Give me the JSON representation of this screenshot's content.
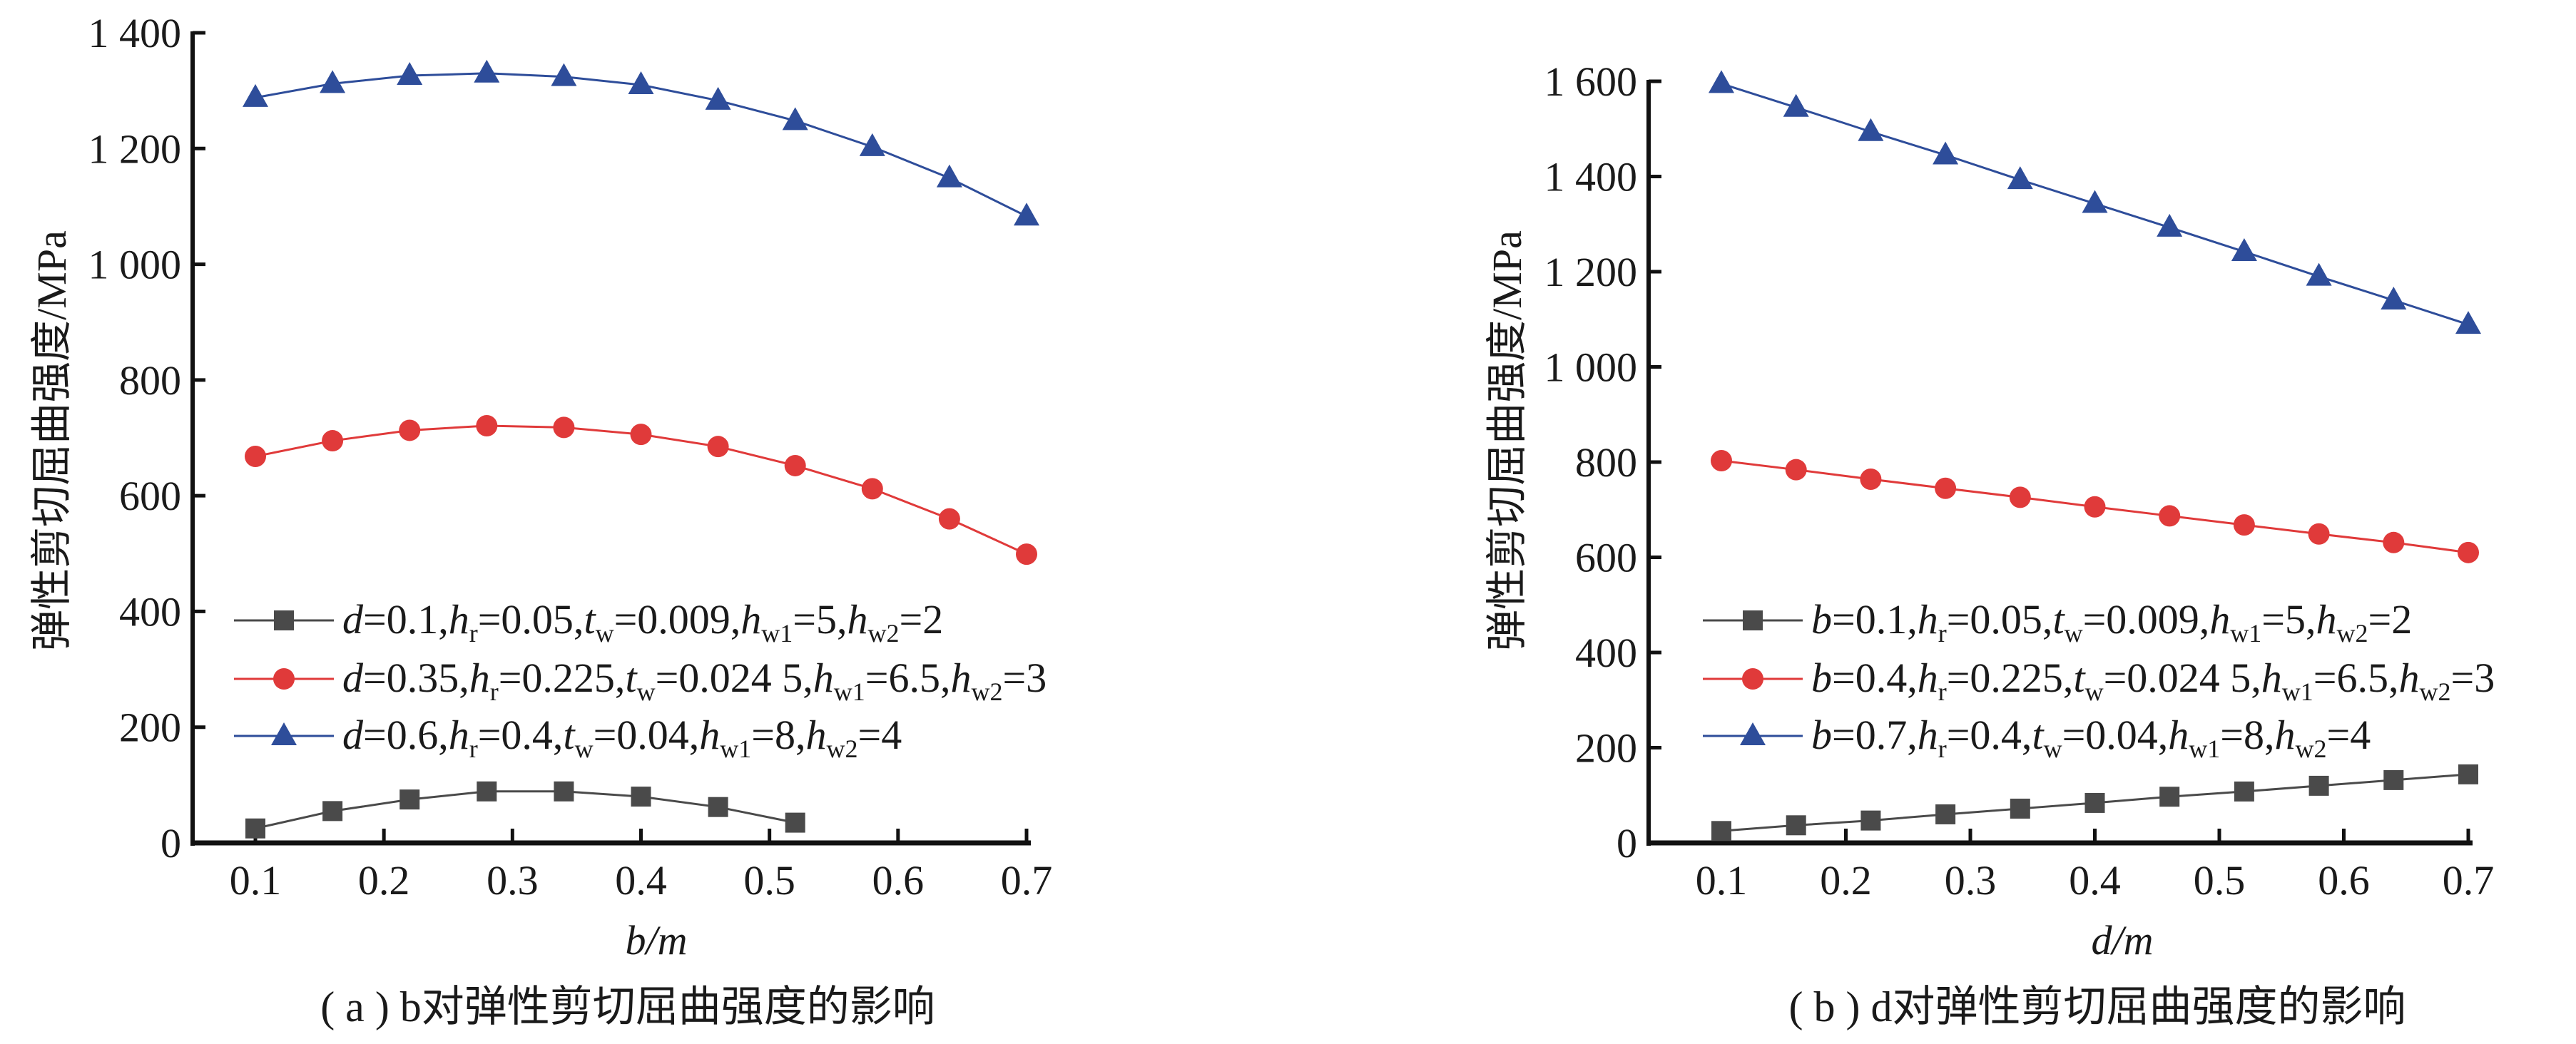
{
  "colors": {
    "gray": "#4a4a4a",
    "red": "#e03a3a",
    "blue": "#2e4d9a",
    "axis": "#111111"
  },
  "chart_data": [
    {
      "type": "line",
      "caption": "( a ) b对弹性剪切屈曲强度的影响",
      "xlabel": "b/m",
      "ylabel": "弹性剪切屈曲强度/MPa",
      "xlim": [
        0.1,
        0.7
      ],
      "ylim": [
        0,
        1400
      ],
      "xticks": [
        "0.1",
        "0.2",
        "0.3",
        "0.4",
        "0.5",
        "0.6",
        "0.7"
      ],
      "yticks": [
        {
          "v": 0,
          "label": "0"
        },
        {
          "v": 200,
          "label": "200"
        },
        {
          "v": 400,
          "label": "400"
        },
        {
          "v": 600,
          "label": "600"
        },
        {
          "v": 800,
          "label": "800"
        },
        {
          "v": 1000,
          "label": "1 000"
        },
        {
          "v": 1200,
          "label": "1 200"
        },
        {
          "v": 1400,
          "label": "1 400"
        }
      ],
      "legend_position": "lower-left",
      "series": [
        {
          "name": "d=0.1,hr=0.05,tw=0.009,hw1=5,hw2=2",
          "color": "gray",
          "marker": "square",
          "legend": [
            [
              "d",
              "i"
            ],
            [
              "=0.1,"
            ],
            [
              "h",
              "i"
            ],
            [
              "r",
              "s"
            ],
            [
              "=0.05,"
            ],
            [
              "t",
              "i"
            ],
            [
              "w",
              "s"
            ],
            [
              "=0.009,"
            ],
            [
              "h",
              "i"
            ],
            [
              "w1",
              "s"
            ],
            [
              "=5,"
            ],
            [
              "h",
              "i"
            ],
            [
              "w2",
              "s"
            ],
            [
              "=2"
            ]
          ],
          "x": [
            0.1,
            0.16,
            0.22,
            0.28,
            0.34,
            0.4,
            0.46,
            0.52
          ],
          "y": [
            25,
            55,
            75,
            89,
            89,
            80,
            62,
            35
          ]
        },
        {
          "name": "d=0.35,hr=0.225,tw=0.024 5,hw1=6.5,hw2=3",
          "color": "red",
          "marker": "circle",
          "legend": [
            [
              "d",
              "i"
            ],
            [
              "=0.35,"
            ],
            [
              "h",
              "i"
            ],
            [
              "r",
              "s"
            ],
            [
              "=0.225,"
            ],
            [
              "t",
              "i"
            ],
            [
              "w",
              "s"
            ],
            [
              "=0.024 5,"
            ],
            [
              "h",
              "i"
            ],
            [
              "w1",
              "s"
            ],
            [
              "=6.5,"
            ],
            [
              "h",
              "i"
            ],
            [
              "w2",
              "s"
            ],
            [
              "=3"
            ]
          ],
          "x": [
            0.1,
            0.16,
            0.22,
            0.28,
            0.34,
            0.4,
            0.46,
            0.52,
            0.58,
            0.64,
            0.7
          ],
          "y": [
            668,
            695,
            713,
            721,
            718,
            706,
            685,
            652,
            612,
            560,
            499
          ]
        },
        {
          "name": "d=0.6,hr=0.4,tw=0.04,hw1=8,hw2=4",
          "color": "blue",
          "marker": "triangle",
          "legend": [
            [
              "d",
              "i"
            ],
            [
              "=0.6,"
            ],
            [
              "h",
              "i"
            ],
            [
              "r",
              "s"
            ],
            [
              "=0.4,"
            ],
            [
              "t",
              "i"
            ],
            [
              "w",
              "s"
            ],
            [
              "=0.04,"
            ],
            [
              "h",
              "i"
            ],
            [
              "w1",
              "s"
            ],
            [
              "=8,"
            ],
            [
              "h",
              "i"
            ],
            [
              "w2",
              "s"
            ],
            [
              "=4"
            ]
          ],
          "x": [
            0.1,
            0.16,
            0.22,
            0.28,
            0.34,
            0.4,
            0.46,
            0.52,
            0.58,
            0.64,
            0.7
          ],
          "y": [
            1288,
            1312,
            1326,
            1330,
            1324,
            1310,
            1283,
            1248,
            1203,
            1149,
            1083
          ]
        }
      ]
    },
    {
      "type": "line",
      "caption": "( b ) d对弹性剪切屈曲强度的影响",
      "xlabel": "d/m",
      "ylabel": "弹性剪切屈曲强度/MPa",
      "xlim": [
        0.1,
        0.7
      ],
      "ylim": [
        0,
        1600
      ],
      "xticks": [
        "0.1",
        "0.2",
        "0.3",
        "0.4",
        "0.5",
        "0.6",
        "0.7"
      ],
      "yticks": [
        {
          "v": 0,
          "label": "0"
        },
        {
          "v": 200,
          "label": "200"
        },
        {
          "v": 400,
          "label": "400"
        },
        {
          "v": 600,
          "label": "600"
        },
        {
          "v": 800,
          "label": "800"
        },
        {
          "v": 1000,
          "label": "1 000"
        },
        {
          "v": 1200,
          "label": "1 200"
        },
        {
          "v": 1400,
          "label": "1 400"
        },
        {
          "v": 1600,
          "label": "1 600"
        }
      ],
      "legend_position": "lower-left",
      "series": [
        {
          "name": "b=0.1,hr=0.05,tw=0.009,hw1=5,hw2=2",
          "color": "gray",
          "marker": "square",
          "legend": [
            [
              "b",
              "i"
            ],
            [
              "=0.1,"
            ],
            [
              "h",
              "i"
            ],
            [
              "r",
              "s"
            ],
            [
              "=0.05,"
            ],
            [
              "t",
              "i"
            ],
            [
              "w",
              "s"
            ],
            [
              "=0.009,"
            ],
            [
              "h",
              "i"
            ],
            [
              "w1",
              "s"
            ],
            [
              "=5,"
            ],
            [
              "h",
              "i"
            ],
            [
              "w2",
              "s"
            ],
            [
              "=2"
            ]
          ],
          "x": [
            0.1,
            0.16,
            0.22,
            0.28,
            0.34,
            0.4,
            0.46,
            0.52,
            0.58,
            0.64,
            0.7
          ],
          "y": [
            25,
            37,
            47,
            60,
            72,
            84,
            97,
            108,
            120,
            132,
            144
          ]
        },
        {
          "name": "b=0.4,hr=0.225,tw=0.024 5,hw1=6.5,hw2=3",
          "color": "red",
          "marker": "circle",
          "legend": [
            [
              "b",
              "i"
            ],
            [
              "=0.4,"
            ],
            [
              "h",
              "i"
            ],
            [
              "r",
              "s"
            ],
            [
              "=0.225,"
            ],
            [
              "t",
              "i"
            ],
            [
              "w",
              "s"
            ],
            [
              "=0.024 5,"
            ],
            [
              "h",
              "i"
            ],
            [
              "w1",
              "s"
            ],
            [
              "=6.5,"
            ],
            [
              "h",
              "i"
            ],
            [
              "w2",
              "s"
            ],
            [
              "=3"
            ]
          ],
          "x": [
            0.1,
            0.16,
            0.22,
            0.28,
            0.34,
            0.4,
            0.46,
            0.52,
            0.58,
            0.64,
            0.7
          ],
          "y": [
            803,
            784,
            764,
            745,
            726,
            706,
            687,
            668,
            649,
            631,
            610
          ]
        },
        {
          "name": "b=0.7,hr=0.4,tw=0.04,hw1=8,hw2=4",
          "color": "blue",
          "marker": "triangle",
          "legend": [
            [
              "b",
              "i"
            ],
            [
              "=0.7,"
            ],
            [
              "h",
              "i"
            ],
            [
              "r",
              "s"
            ],
            [
              "=0.4,"
            ],
            [
              "t",
              "i"
            ],
            [
              "w",
              "s"
            ],
            [
              "=0.04,"
            ],
            [
              "h",
              "i"
            ],
            [
              "w1",
              "s"
            ],
            [
              "=8,"
            ],
            [
              "h",
              "i"
            ],
            [
              "w2",
              "s"
            ],
            [
              "=4"
            ]
          ],
          "x": [
            0.1,
            0.16,
            0.22,
            0.28,
            0.34,
            0.4,
            0.46,
            0.52,
            0.58,
            0.64,
            0.7
          ],
          "y": [
            1595,
            1545,
            1494,
            1445,
            1393,
            1343,
            1293,
            1242,
            1190,
            1140,
            1089
          ]
        }
      ]
    }
  ]
}
